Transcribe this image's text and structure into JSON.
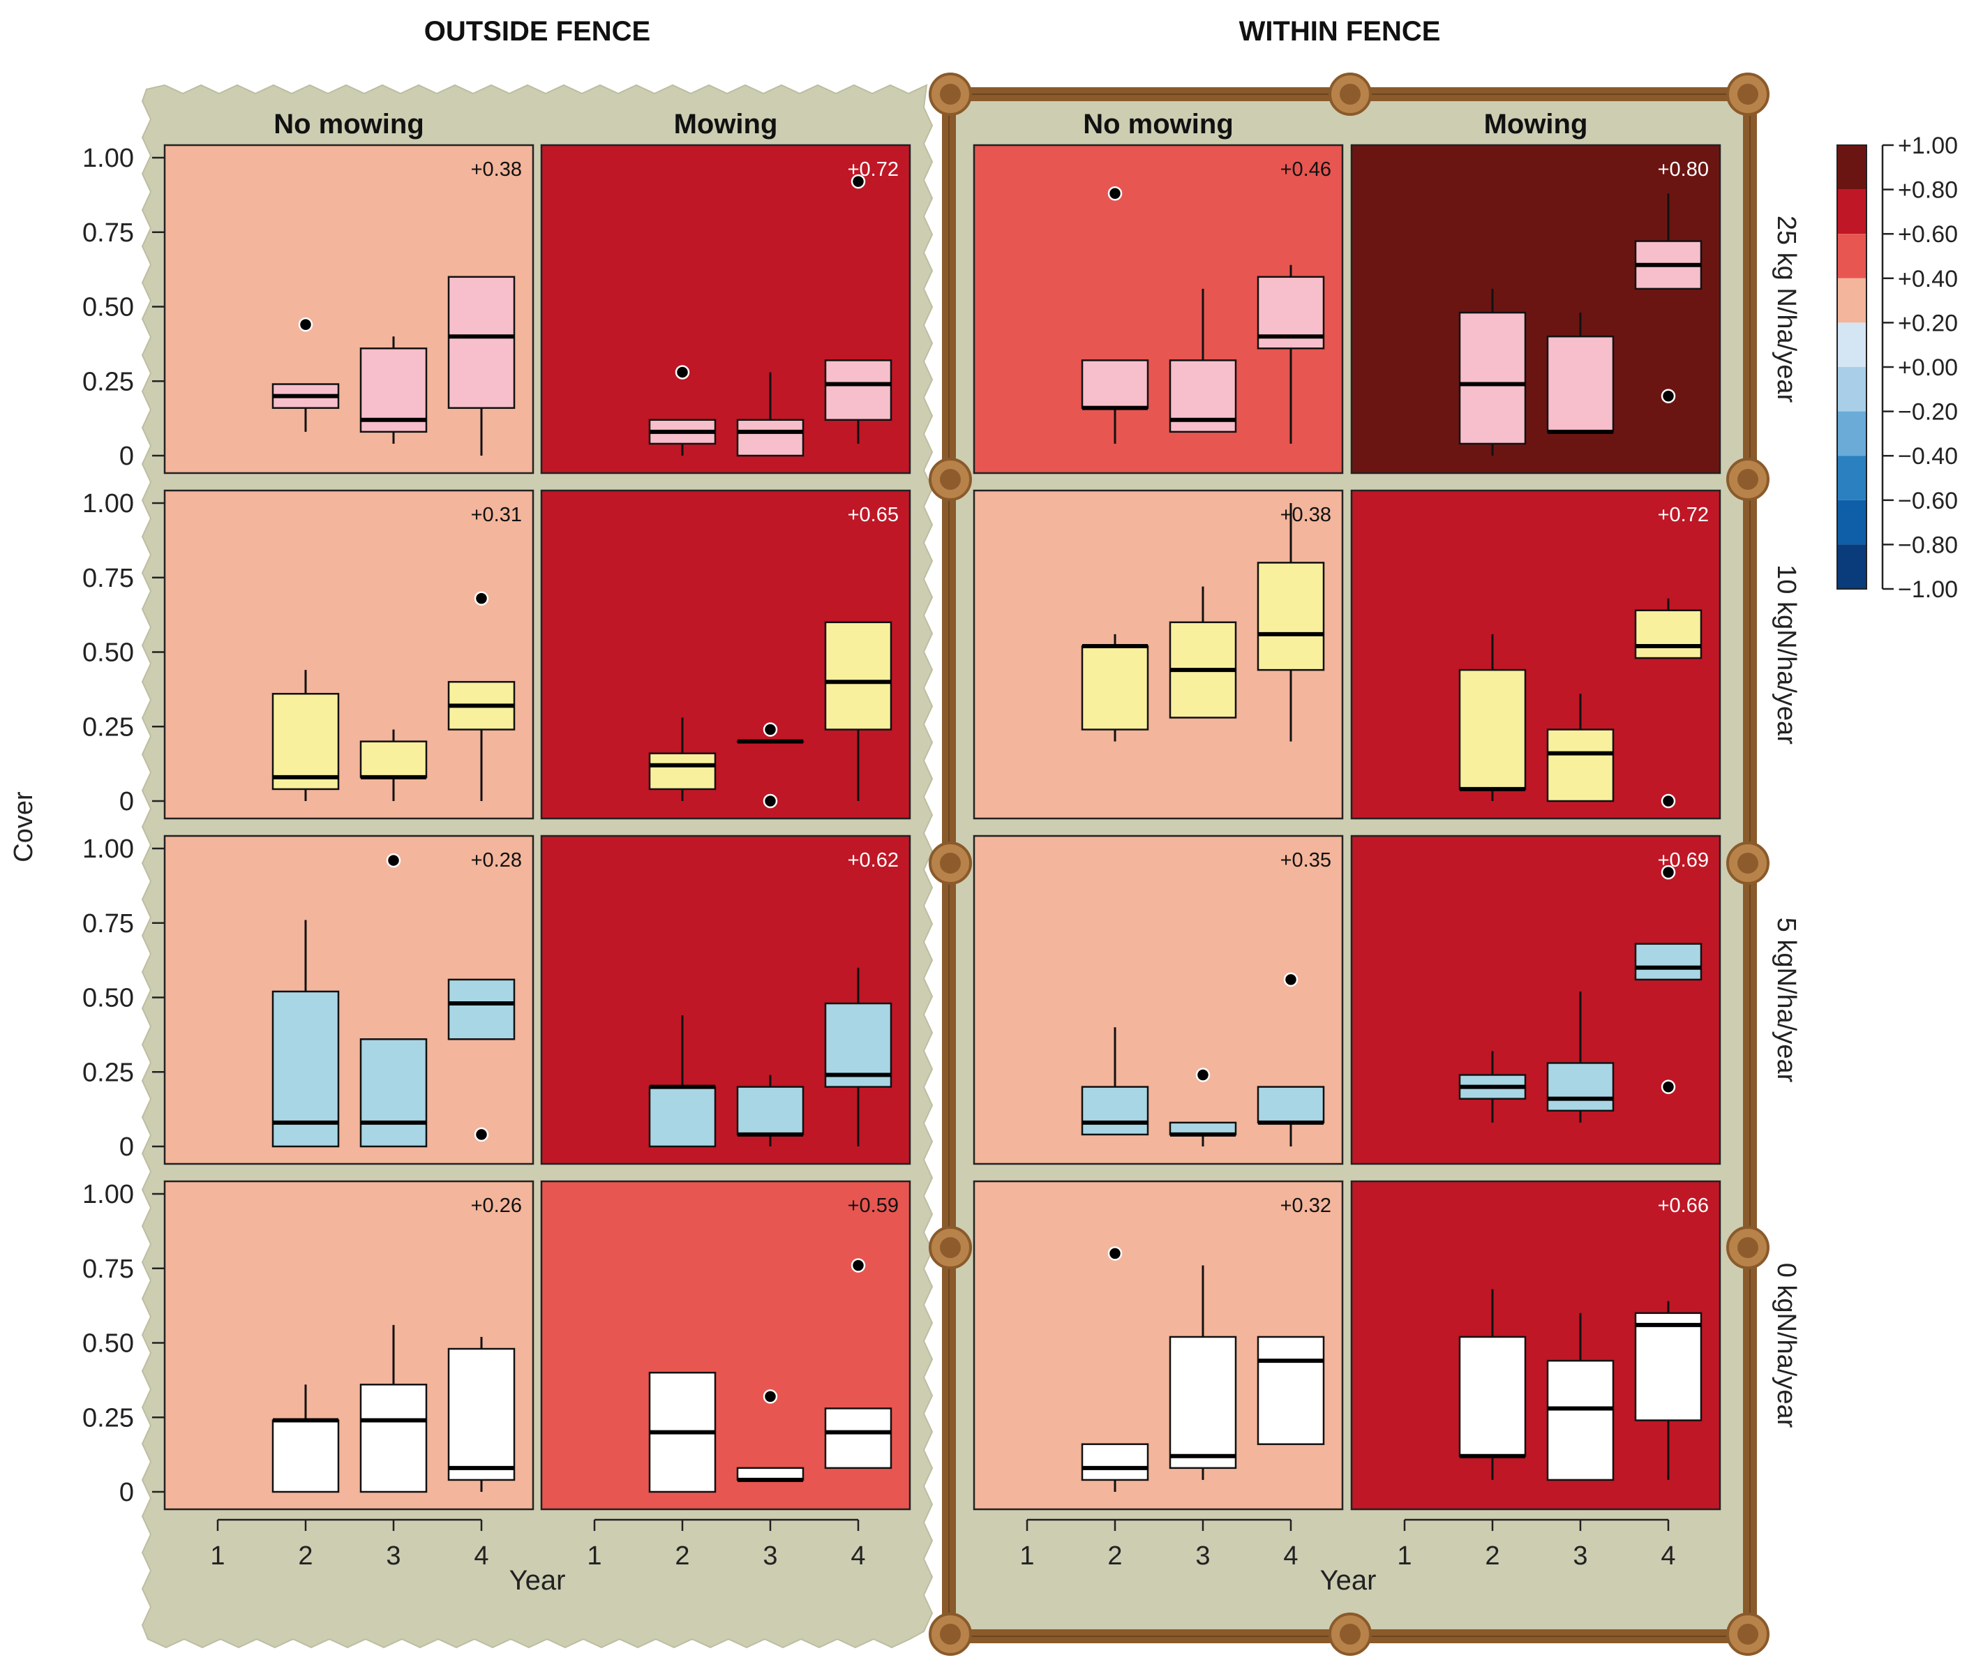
{
  "chart_data": {
    "type": "boxplot",
    "group_titles": [
      "OUTSIDE FENCE",
      "WITHIN FENCE"
    ],
    "mowing_labels": [
      "No mowing",
      "Mowing"
    ],
    "nitrogen_labels": [
      "25 kg N/ha/year",
      "10 kgN/ha/year",
      "5 kgN/ha/year",
      "0 kgN/ha/year"
    ],
    "ylabel": "Cover",
    "xlabel": "Year",
    "ylim": [
      0,
      1
    ],
    "y_ticks": [
      0,
      0.25,
      0.5,
      0.75,
      1.0
    ],
    "y_tick_labels": [
      "0",
      "0.25",
      "0.50",
      "0.75",
      "1.00"
    ],
    "x_ticks": [
      1,
      2,
      3,
      4
    ],
    "x_tick_labels": [
      "1",
      "2",
      "3",
      "4"
    ],
    "row_box_colors": [
      "#f7bfcb",
      "#f9f09e",
      "#a9d6e4",
      "#ffffff"
    ],
    "colorbar": {
      "labels": [
        "+1.00",
        "+0.80",
        "+0.60",
        "+0.40",
        "+0.20",
        "+0.00",
        "−0.20",
        "−0.40",
        "−0.60",
        "−0.80",
        "−1.00"
      ],
      "colors": [
        "#6b1512",
        "#bf1726",
        "#e85651",
        "#f3b59b",
        "#ffffff",
        "#d4e5f4",
        "#a9cfe8",
        "#6aabd8",
        "#2b80c0",
        "#0f5ea8",
        "#0a3b7a"
      ]
    },
    "panels": [
      {
        "fence": "OUTSIDE FENCE",
        "mowing": "No mowing",
        "nitrogen": "25 kg N/ha/year",
        "corr_label": "+0.38",
        "bg": "#f3b59b",
        "corr_color": "#111111",
        "boxes": [
          {
            "year": 2,
            "q1": 0.16,
            "median": 0.2,
            "q3": 0.24,
            "wlo": 0.08,
            "whi": 0.24,
            "outliers": [
              0.44
            ]
          },
          {
            "year": 3,
            "q1": 0.08,
            "median": 0.12,
            "q3": 0.36,
            "wlo": 0.04,
            "whi": 0.4,
            "outliers": []
          },
          {
            "year": 4,
            "q1": 0.16,
            "median": 0.4,
            "q3": 0.6,
            "wlo": 0.0,
            "whi": 0.6,
            "outliers": []
          }
        ]
      },
      {
        "fence": "OUTSIDE FENCE",
        "mowing": "Mowing",
        "nitrogen": "25 kg N/ha/year",
        "corr_label": "+0.72",
        "bg": "#bf1726",
        "corr_color": "#ffffff",
        "boxes": [
          {
            "year": 2,
            "q1": 0.04,
            "median": 0.08,
            "q3": 0.12,
            "wlo": 0.0,
            "whi": 0.12,
            "outliers": [
              0.28
            ]
          },
          {
            "year": 3,
            "q1": 0.0,
            "median": 0.08,
            "q3": 0.12,
            "wlo": 0.0,
            "whi": 0.28,
            "outliers": []
          },
          {
            "year": 4,
            "q1": 0.12,
            "median": 0.24,
            "q3": 0.32,
            "wlo": 0.04,
            "whi": 0.32,
            "outliers": [
              0.92
            ]
          }
        ]
      },
      {
        "fence": "WITHIN FENCE",
        "mowing": "No mowing",
        "nitrogen": "25 kg N/ha/year",
        "corr_label": "+0.46",
        "bg": "#e85651",
        "corr_color": "#111111",
        "boxes": [
          {
            "year": 2,
            "q1": 0.16,
            "median": 0.16,
            "q3": 0.32,
            "wlo": 0.04,
            "whi": 0.32,
            "outliers": [
              0.88
            ]
          },
          {
            "year": 3,
            "q1": 0.08,
            "median": 0.12,
            "q3": 0.32,
            "wlo": 0.08,
            "whi": 0.56,
            "outliers": []
          },
          {
            "year": 4,
            "q1": 0.36,
            "median": 0.4,
            "q3": 0.6,
            "wlo": 0.04,
            "whi": 0.64,
            "outliers": []
          }
        ]
      },
      {
        "fence": "WITHIN FENCE",
        "mowing": "Mowing",
        "nitrogen": "25 kg N/ha/year",
        "corr_label": "+0.80",
        "bg": "#6b1512",
        "corr_color": "#ffffff",
        "boxes": [
          {
            "year": 2,
            "q1": 0.04,
            "median": 0.24,
            "q3": 0.48,
            "wlo": 0.0,
            "whi": 0.56,
            "outliers": []
          },
          {
            "year": 3,
            "q1": 0.08,
            "median": 0.08,
            "q3": 0.4,
            "wlo": 0.08,
            "whi": 0.48,
            "outliers": []
          },
          {
            "year": 4,
            "q1": 0.56,
            "median": 0.64,
            "q3": 0.72,
            "wlo": 0.56,
            "whi": 0.88,
            "outliers": [
              0.2
            ]
          }
        ]
      },
      {
        "fence": "OUTSIDE FENCE",
        "mowing": "No mowing",
        "nitrogen": "10 kgN/ha/year",
        "corr_label": "+0.31",
        "bg": "#f3b59b",
        "corr_color": "#111111",
        "boxes": [
          {
            "year": 2,
            "q1": 0.04,
            "median": 0.08,
            "q3": 0.36,
            "wlo": 0.0,
            "whi": 0.44,
            "outliers": []
          },
          {
            "year": 3,
            "q1": 0.08,
            "median": 0.08,
            "q3": 0.2,
            "wlo": 0.0,
            "whi": 0.24,
            "outliers": []
          },
          {
            "year": 4,
            "q1": 0.24,
            "median": 0.32,
            "q3": 0.4,
            "wlo": 0.0,
            "whi": 0.4,
            "outliers": [
              0.68
            ]
          }
        ]
      },
      {
        "fence": "OUTSIDE FENCE",
        "mowing": "Mowing",
        "nitrogen": "10 kgN/ha/year",
        "corr_label": "+0.65",
        "bg": "#bf1726",
        "corr_color": "#ffffff",
        "boxes": [
          {
            "year": 2,
            "q1": 0.04,
            "median": 0.12,
            "q3": 0.16,
            "wlo": 0.0,
            "whi": 0.28,
            "outliers": []
          },
          {
            "year": 3,
            "q1": 0.2,
            "median": 0.2,
            "q3": 0.2,
            "wlo": 0.2,
            "whi": 0.2,
            "outliers": [
              0.24,
              0.0
            ]
          },
          {
            "year": 4,
            "q1": 0.24,
            "median": 0.4,
            "q3": 0.6,
            "wlo": 0.0,
            "whi": 0.6,
            "outliers": []
          }
        ]
      },
      {
        "fence": "WITHIN FENCE",
        "mowing": "No mowing",
        "nitrogen": "10 kgN/ha/year",
        "corr_label": "+0.38",
        "bg": "#f3b59b",
        "corr_color": "#111111",
        "boxes": [
          {
            "year": 2,
            "q1": 0.24,
            "median": 0.52,
            "q3": 0.52,
            "wlo": 0.2,
            "whi": 0.56,
            "outliers": []
          },
          {
            "year": 3,
            "q1": 0.28,
            "median": 0.44,
            "q3": 0.6,
            "wlo": 0.28,
            "whi": 0.72,
            "outliers": []
          },
          {
            "year": 4,
            "q1": 0.44,
            "median": 0.56,
            "q3": 0.8,
            "wlo": 0.2,
            "whi": 1.0,
            "outliers": []
          }
        ]
      },
      {
        "fence": "WITHIN FENCE",
        "mowing": "Mowing",
        "nitrogen": "10 kgN/ha/year",
        "corr_label": "+0.72",
        "bg": "#bf1726",
        "corr_color": "#ffffff",
        "boxes": [
          {
            "year": 2,
            "q1": 0.04,
            "median": 0.04,
            "q3": 0.44,
            "wlo": 0.0,
            "whi": 0.56,
            "outliers": []
          },
          {
            "year": 3,
            "q1": 0.0,
            "median": 0.16,
            "q3": 0.24,
            "wlo": 0.0,
            "whi": 0.36,
            "outliers": []
          },
          {
            "year": 4,
            "q1": 0.48,
            "median": 0.52,
            "q3": 0.64,
            "wlo": 0.48,
            "whi": 0.68,
            "outliers": [
              0.0
            ]
          }
        ]
      },
      {
        "fence": "OUTSIDE FENCE",
        "mowing": "No mowing",
        "nitrogen": "5 kgN/ha/year",
        "corr_label": "+0.28",
        "bg": "#f3b59b",
        "corr_color": "#111111",
        "boxes": [
          {
            "year": 2,
            "q1": 0.0,
            "median": 0.08,
            "q3": 0.52,
            "wlo": 0.0,
            "whi": 0.76,
            "outliers": []
          },
          {
            "year": 3,
            "q1": 0.0,
            "median": 0.08,
            "q3": 0.36,
            "wlo": 0.0,
            "whi": 0.36,
            "outliers": [
              0.96
            ]
          },
          {
            "year": 4,
            "q1": 0.36,
            "median": 0.48,
            "q3": 0.56,
            "wlo": 0.36,
            "whi": 0.56,
            "outliers": [
              0.04
            ]
          }
        ]
      },
      {
        "fence": "OUTSIDE FENCE",
        "mowing": "Mowing",
        "nitrogen": "5 kgN/ha/year",
        "corr_label": "+0.62",
        "bg": "#bf1726",
        "corr_color": "#ffffff",
        "boxes": [
          {
            "year": 2,
            "q1": 0.0,
            "median": 0.2,
            "q3": 0.2,
            "wlo": 0.0,
            "whi": 0.44,
            "outliers": []
          },
          {
            "year": 3,
            "q1": 0.04,
            "median": 0.04,
            "q3": 0.2,
            "wlo": 0.0,
            "whi": 0.24,
            "outliers": []
          },
          {
            "year": 4,
            "q1": 0.2,
            "median": 0.24,
            "q3": 0.48,
            "wlo": 0.0,
            "whi": 0.6,
            "outliers": []
          }
        ]
      },
      {
        "fence": "WITHIN FENCE",
        "mowing": "No mowing",
        "nitrogen": "5 kgN/ha/year",
        "corr_label": "+0.35",
        "bg": "#f3b59b",
        "corr_color": "#111111",
        "boxes": [
          {
            "year": 2,
            "q1": 0.04,
            "median": 0.08,
            "q3": 0.2,
            "wlo": 0.04,
            "whi": 0.4,
            "outliers": []
          },
          {
            "year": 3,
            "q1": 0.04,
            "median": 0.04,
            "q3": 0.08,
            "wlo": 0.0,
            "whi": 0.08,
            "outliers": [
              0.24
            ]
          },
          {
            "year": 4,
            "q1": 0.08,
            "median": 0.08,
            "q3": 0.2,
            "wlo": 0.0,
            "whi": 0.2,
            "outliers": [
              0.56
            ]
          }
        ]
      },
      {
        "fence": "WITHIN FENCE",
        "mowing": "Mowing",
        "nitrogen": "5 kgN/ha/year",
        "corr_label": "+0.69",
        "bg": "#bf1726",
        "corr_color": "#ffffff",
        "boxes": [
          {
            "year": 2,
            "q1": 0.16,
            "median": 0.2,
            "q3": 0.24,
            "wlo": 0.08,
            "whi": 0.32,
            "outliers": []
          },
          {
            "year": 3,
            "q1": 0.12,
            "median": 0.16,
            "q3": 0.28,
            "wlo": 0.08,
            "whi": 0.52,
            "outliers": []
          },
          {
            "year": 4,
            "q1": 0.56,
            "median": 0.6,
            "q3": 0.68,
            "wlo": 0.56,
            "whi": 0.68,
            "outliers": [
              0.92,
              0.2
            ]
          }
        ]
      },
      {
        "fence": "OUTSIDE FENCE",
        "mowing": "No mowing",
        "nitrogen": "0 kgN/ha/year",
        "corr_label": "+0.26",
        "bg": "#f3b59b",
        "corr_color": "#111111",
        "boxes": [
          {
            "year": 2,
            "q1": 0.0,
            "median": 0.24,
            "q3": 0.24,
            "wlo": 0.0,
            "whi": 0.36,
            "outliers": []
          },
          {
            "year": 3,
            "q1": 0.0,
            "median": 0.24,
            "q3": 0.36,
            "wlo": 0.0,
            "whi": 0.56,
            "outliers": []
          },
          {
            "year": 4,
            "q1": 0.04,
            "median": 0.08,
            "q3": 0.48,
            "wlo": 0.0,
            "whi": 0.52,
            "outliers": []
          }
        ]
      },
      {
        "fence": "OUTSIDE FENCE",
        "mowing": "Mowing",
        "nitrogen": "0 kgN/ha/year",
        "corr_label": "+0.59",
        "bg": "#e85651",
        "corr_color": "#111111",
        "boxes": [
          {
            "year": 2,
            "q1": 0.0,
            "median": 0.2,
            "q3": 0.4,
            "wlo": 0.0,
            "whi": 0.4,
            "outliers": []
          },
          {
            "year": 3,
            "q1": 0.04,
            "median": 0.04,
            "q3": 0.08,
            "wlo": 0.04,
            "whi": 0.08,
            "outliers": [
              0.32
            ]
          },
          {
            "year": 4,
            "q1": 0.08,
            "median": 0.2,
            "q3": 0.28,
            "wlo": 0.08,
            "whi": 0.28,
            "outliers": [
              0.76
            ]
          }
        ]
      },
      {
        "fence": "WITHIN FENCE",
        "mowing": "No mowing",
        "nitrogen": "0 kgN/ha/year",
        "corr_label": "+0.32",
        "bg": "#f3b59b",
        "corr_color": "#111111",
        "boxes": [
          {
            "year": 2,
            "q1": 0.04,
            "median": 0.08,
            "q3": 0.16,
            "wlo": 0.0,
            "whi": 0.16,
            "outliers": [
              0.8
            ]
          },
          {
            "year": 3,
            "q1": 0.08,
            "median": 0.12,
            "q3": 0.52,
            "wlo": 0.04,
            "whi": 0.76,
            "outliers": []
          },
          {
            "year": 4,
            "q1": 0.16,
            "median": 0.44,
            "q3": 0.52,
            "wlo": 0.16,
            "whi": 0.52,
            "outliers": []
          }
        ]
      },
      {
        "fence": "WITHIN FENCE",
        "mowing": "Mowing",
        "nitrogen": "0 kgN/ha/year",
        "corr_label": "+0.66",
        "bg": "#bf1726",
        "corr_color": "#ffffff",
        "boxes": [
          {
            "year": 2,
            "q1": 0.12,
            "median": 0.12,
            "q3": 0.52,
            "wlo": 0.04,
            "whi": 0.68,
            "outliers": []
          },
          {
            "year": 3,
            "q1": 0.04,
            "median": 0.28,
            "q3": 0.44,
            "wlo": 0.04,
            "whi": 0.6,
            "outliers": []
          },
          {
            "year": 4,
            "q1": 0.24,
            "median": 0.56,
            "q3": 0.6,
            "wlo": 0.04,
            "whi": 0.64,
            "outliers": []
          }
        ]
      }
    ]
  }
}
